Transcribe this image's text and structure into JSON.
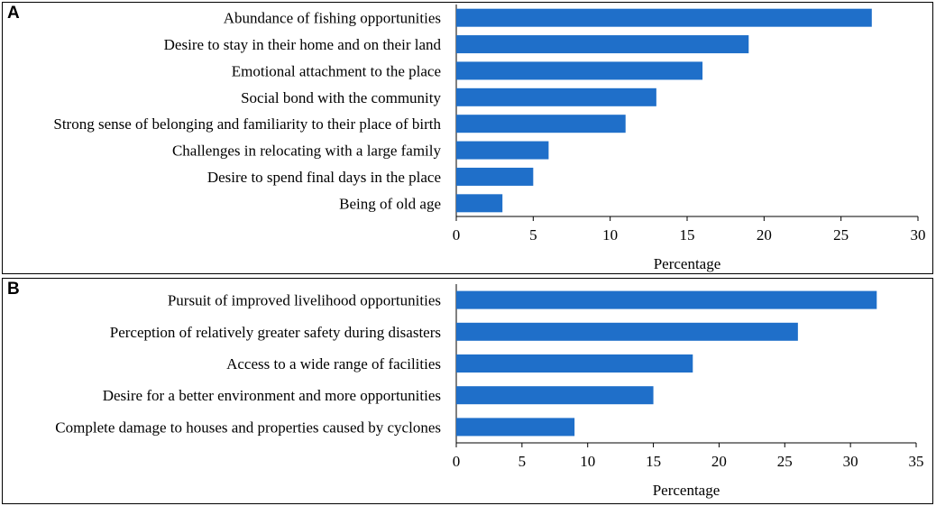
{
  "chart_data": [
    {
      "panel": "A",
      "type": "bar",
      "orientation": "horizontal",
      "categories": [
        "Abundance of fishing opportunities",
        "Desire to stay in their home and on their land",
        "Emotional attachment to the place",
        "Social bond with the community",
        "Strong sense of belonging and familiarity to their place of birth",
        "Challenges in relocating with a large family",
        "Desire to spend final days in the place",
        "Being of old age"
      ],
      "values": [
        27,
        19,
        16,
        13,
        11,
        6,
        5,
        3
      ],
      "xlabel": "Percentage",
      "xlim": [
        0,
        30
      ],
      "xticks": [
        "0",
        "5",
        "10",
        "15",
        "20",
        "25",
        "30"
      ],
      "bar_color": "#1f6fc9"
    },
    {
      "panel": "B",
      "type": "bar",
      "orientation": "horizontal",
      "categories": [
        "Pursuit of improved livelihood opportunities",
        "Perception of relatively greater safety during disasters",
        "Access to a wide range of facilities",
        "Desire for a better environment and more opportunities",
        "Complete damage to houses and properties caused by cyclones"
      ],
      "values": [
        32,
        26,
        18,
        15,
        9
      ],
      "xlabel": "Percentage",
      "xlim": [
        0,
        35
      ],
      "xticks": [
        "0",
        "5",
        "10",
        "15",
        "20",
        "25",
        "30",
        "35"
      ],
      "bar_color": "#1f6fc9"
    }
  ]
}
